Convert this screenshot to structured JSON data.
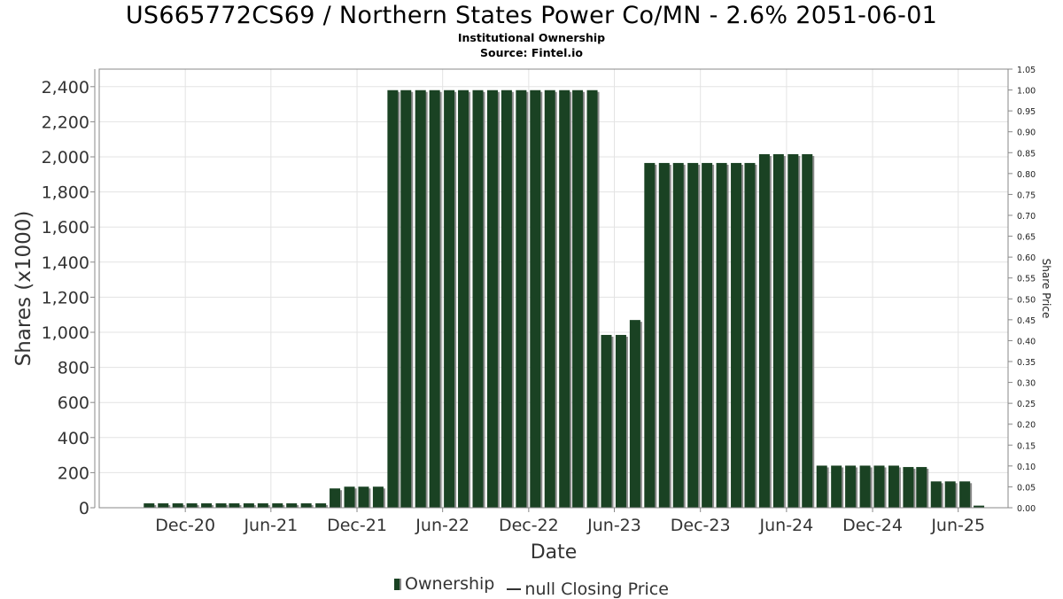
{
  "title": "US665772CS69 / Northern States Power Co/MN - 2.6% 2051-06-01",
  "subtitle_1": "Institutional Ownership",
  "subtitle_2": "Source: Fintel.io",
  "legend": {
    "ownership_label": "Ownership",
    "price_label": "null Closing Price"
  },
  "colors": {
    "bar": "#1a4223",
    "bar_shadow": "#8c8c8c",
    "grid": "#e3e3e3",
    "axis": "#888888"
  },
  "chart_data": {
    "type": "bar",
    "xlabel": "Date",
    "ylabel": "Shares (x1000)",
    "y2label": "Share Price",
    "ylim": [
      0,
      2500
    ],
    "y_ticks": [
      0,
      200,
      400,
      600,
      800,
      1000,
      1200,
      1400,
      1600,
      1800,
      2000,
      2200,
      2400
    ],
    "y_tick_labels": [
      "0",
      "200",
      "400",
      "600",
      "800",
      "1,000",
      "1,200",
      "1,400",
      "1,600",
      "1,800",
      "2,000",
      "2,200",
      "2,400"
    ],
    "y2lim": [
      0,
      1.05
    ],
    "y2_ticks": [
      0,
      0.05,
      0.1,
      0.15,
      0.2,
      0.25,
      0.3,
      0.35,
      0.4,
      0.45,
      0.5,
      0.55,
      0.6,
      0.65,
      0.7,
      0.75,
      0.8,
      0.85,
      0.9,
      0.95,
      1.0,
      1.05
    ],
    "y2_tick_labels": [
      "0.00",
      "0.05",
      "0.10",
      "0.15",
      "0.20",
      "0.25",
      "0.30",
      "0.35",
      "0.40",
      "0.45",
      "0.50",
      "0.55",
      "0.60",
      "0.65",
      "0.70",
      "0.75",
      "0.80",
      "0.85",
      "0.90",
      "0.95",
      "1.00",
      "1.05"
    ],
    "x_range": [
      "2020-06-01",
      "2025-09-15"
    ],
    "x_ticks": [
      {
        "date": "2020-12-01",
        "label": "Dec-20"
      },
      {
        "date": "2021-06-01",
        "label": "Jun-21"
      },
      {
        "date": "2021-12-01",
        "label": "Dec-21"
      },
      {
        "date": "2022-06-01",
        "label": "Jun-22"
      },
      {
        "date": "2022-12-01",
        "label": "Dec-22"
      },
      {
        "date": "2023-06-01",
        "label": "Jun-23"
      },
      {
        "date": "2023-12-01",
        "label": "Dec-23"
      },
      {
        "date": "2024-06-01",
        "label": "Jun-24"
      },
      {
        "date": "2024-12-01",
        "label": "Dec-24"
      },
      {
        "date": "2025-06-01",
        "label": "Jun-25"
      }
    ],
    "grid": true,
    "legend_position": "bottom",
    "series": [
      {
        "name": "Ownership",
        "points": [
          {
            "date": "2020-09-15",
            "value": 25
          },
          {
            "date": "2020-10-15",
            "value": 25
          },
          {
            "date": "2020-11-15",
            "value": 25
          },
          {
            "date": "2020-12-15",
            "value": 25
          },
          {
            "date": "2021-01-15",
            "value": 25
          },
          {
            "date": "2021-02-15",
            "value": 25
          },
          {
            "date": "2021-03-15",
            "value": 25
          },
          {
            "date": "2021-04-15",
            "value": 25
          },
          {
            "date": "2021-05-15",
            "value": 25
          },
          {
            "date": "2021-06-15",
            "value": 25
          },
          {
            "date": "2021-07-15",
            "value": 25
          },
          {
            "date": "2021-08-15",
            "value": 25
          },
          {
            "date": "2021-09-15",
            "value": 25
          },
          {
            "date": "2021-10-15",
            "value": 110
          },
          {
            "date": "2021-11-15",
            "value": 120
          },
          {
            "date": "2021-12-15",
            "value": 120
          },
          {
            "date": "2022-01-15",
            "value": 120
          },
          {
            "date": "2022-02-15",
            "value": 2380
          },
          {
            "date": "2022-03-15",
            "value": 2380
          },
          {
            "date": "2022-04-15",
            "value": 2380
          },
          {
            "date": "2022-05-15",
            "value": 2380
          },
          {
            "date": "2022-06-15",
            "value": 2380
          },
          {
            "date": "2022-07-15",
            "value": 2380
          },
          {
            "date": "2022-08-15",
            "value": 2380
          },
          {
            "date": "2022-09-15",
            "value": 2380
          },
          {
            "date": "2022-10-15",
            "value": 2380
          },
          {
            "date": "2022-11-15",
            "value": 2380
          },
          {
            "date": "2022-12-15",
            "value": 2380
          },
          {
            "date": "2023-01-15",
            "value": 2380
          },
          {
            "date": "2023-02-15",
            "value": 2380
          },
          {
            "date": "2023-03-15",
            "value": 2380
          },
          {
            "date": "2023-04-15",
            "value": 2380
          },
          {
            "date": "2023-05-15",
            "value": 985
          },
          {
            "date": "2023-06-15",
            "value": 985
          },
          {
            "date": "2023-07-15",
            "value": 1070
          },
          {
            "date": "2023-08-15",
            "value": 1965
          },
          {
            "date": "2023-09-15",
            "value": 1965
          },
          {
            "date": "2023-10-15",
            "value": 1965
          },
          {
            "date": "2023-11-15",
            "value": 1965
          },
          {
            "date": "2023-12-15",
            "value": 1965
          },
          {
            "date": "2024-01-15",
            "value": 1965
          },
          {
            "date": "2024-02-15",
            "value": 1965
          },
          {
            "date": "2024-03-15",
            "value": 1965
          },
          {
            "date": "2024-04-15",
            "value": 2015
          },
          {
            "date": "2024-05-15",
            "value": 2015
          },
          {
            "date": "2024-06-15",
            "value": 2015
          },
          {
            "date": "2024-07-15",
            "value": 2015
          },
          {
            "date": "2024-08-15",
            "value": 240
          },
          {
            "date": "2024-09-15",
            "value": 240
          },
          {
            "date": "2024-10-15",
            "value": 240
          },
          {
            "date": "2024-11-15",
            "value": 240
          },
          {
            "date": "2024-12-15",
            "value": 240
          },
          {
            "date": "2025-01-15",
            "value": 240
          },
          {
            "date": "2025-02-15",
            "value": 232
          },
          {
            "date": "2025-03-15",
            "value": 232
          },
          {
            "date": "2025-04-15",
            "value": 150
          },
          {
            "date": "2025-05-15",
            "value": 150
          },
          {
            "date": "2025-06-15",
            "value": 150
          },
          {
            "date": "2025-07-15",
            "value": 12
          }
        ]
      }
    ]
  }
}
